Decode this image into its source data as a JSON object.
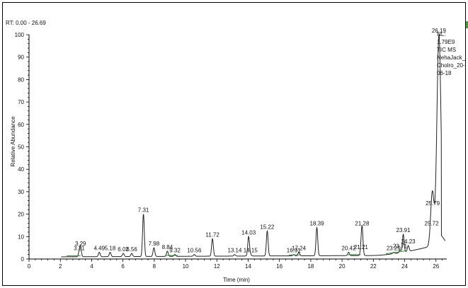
{
  "chart_data": {
    "type": "line",
    "range_label": "RT: 0.00 - 26.69",
    "xlabel": "Time (min)",
    "ylabel": "Relative Abundance",
    "xlim": [
      0,
      26.69
    ],
    "ylim": [
      0,
      100
    ],
    "x_ticks": [
      "0",
      "2",
      "4",
      "6",
      "8",
      "10",
      "12",
      "14",
      "16",
      "18",
      "20",
      "22",
      "24",
      "26"
    ],
    "y_ticks": [
      "0",
      "10",
      "20",
      "30",
      "40",
      "50",
      "60",
      "70",
      "80",
      "90",
      "100"
    ],
    "grid": false,
    "legend": "none",
    "info_lines": [
      "NL:",
      "1.79E9",
      "TIC  MS",
      "NehaJack_",
      "Cholro_20-",
      "06-18"
    ],
    "peaks": [
      {
        "label": "3.21",
        "x": 3.21,
        "y": 3
      },
      {
        "label": "3.29",
        "x": 3.29,
        "y": 5
      },
      {
        "label": "4.49",
        "x": 4.49,
        "y": 3
      },
      {
        "label": "5.18",
        "x": 5.18,
        "y": 3
      },
      {
        "label": "6.02",
        "x": 6.02,
        "y": 2.5
      },
      {
        "label": "6.56",
        "x": 6.56,
        "y": 2.5
      },
      {
        "label": "7.31",
        "x": 7.31,
        "y": 20
      },
      {
        "label": "7.98",
        "x": 7.98,
        "y": 5
      },
      {
        "label": "8.84",
        "x": 8.84,
        "y": 3.5
      },
      {
        "label": "9.32",
        "x": 9.32,
        "y": 2
      },
      {
        "label": "10.56",
        "x": 10.56,
        "y": 2
      },
      {
        "label": "11.72",
        "x": 11.72,
        "y": 9
      },
      {
        "label": "13.14",
        "x": 13.14,
        "y": 2
      },
      {
        "label": "14.03",
        "x": 14.03,
        "y": 10
      },
      {
        "label": "14.15",
        "x": 14.15,
        "y": 2
      },
      {
        "label": "15.22",
        "x": 15.22,
        "y": 12.5
      },
      {
        "label": "16.91",
        "x": 16.91,
        "y": 2
      },
      {
        "label": "17.24",
        "x": 17.24,
        "y": 3
      },
      {
        "label": "18.39",
        "x": 18.39,
        "y": 14
      },
      {
        "label": "20.42",
        "x": 20.42,
        "y": 3
      },
      {
        "label": "21.21",
        "x": 21.21,
        "y": 3.5
      },
      {
        "label": "21.28",
        "x": 21.28,
        "y": 14
      },
      {
        "label": "23.29",
        "x": 23.29,
        "y": 3
      },
      {
        "label": "23.71",
        "x": 23.71,
        "y": 4
      },
      {
        "label": "23.91",
        "x": 23.91,
        "y": 11
      },
      {
        "label": "24.23",
        "x": 24.23,
        "y": 6
      },
      {
        "label": "25.72",
        "x": 25.72,
        "y": 14
      },
      {
        "label": "25.79",
        "x": 25.79,
        "y": 23
      },
      {
        "label": "26.19",
        "x": 26.19,
        "y": 100
      }
    ],
    "colors": {
      "trace": "#222222",
      "baseline_accent": "#2e8b2e",
      "axis": "#000000"
    }
  }
}
